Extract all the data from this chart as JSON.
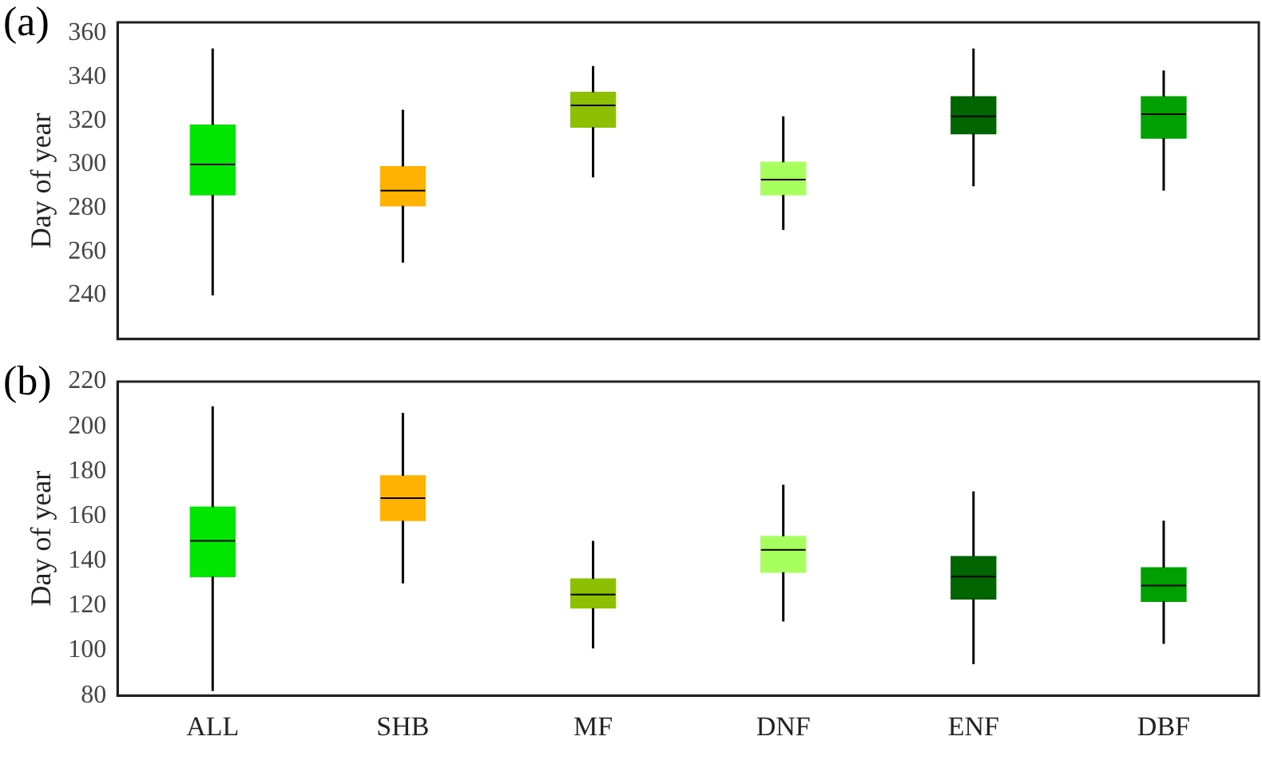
{
  "chart_data": [
    {
      "type": "box",
      "annotations": [
        "(a)"
      ],
      "ylabel": "Day of year",
      "categories": [
        null,
        null,
        null,
        null,
        null,
        null
      ],
      "colors": [
        "#00e600",
        "#ffb300",
        "#8cc000",
        "#a8ff60",
        "#006400",
        "#00a000"
      ],
      "boxes": [
        {
          "low": 240,
          "q1": 286,
          "median": 300,
          "q3": 318,
          "high": 353
        },
        {
          "low": 255,
          "q1": 281,
          "median": 288,
          "q3": 299,
          "high": 325
        },
        {
          "low": 294,
          "q1": 317,
          "median": 327,
          "q3": 333,
          "high": 345
        },
        {
          "low": 270,
          "q1": 286,
          "median": 293,
          "q3": 301,
          "high": 322
        },
        {
          "low": 290,
          "q1": 314,
          "median": 322,
          "q3": 331,
          "high": 353
        },
        {
          "low": 288,
          "q1": 312,
          "median": 323,
          "q3": 331,
          "high": 343
        }
      ],
      "ylim": [
        220,
        365
      ],
      "yticks": [
        240,
        260,
        280,
        300,
        320,
        340,
        360
      ],
      "tick_labels": "y",
      "grid": false
    },
    {
      "type": "box",
      "annotations": [
        "(b)"
      ],
      "ylabel": "Day of year",
      "categories": [
        "ALL",
        "SHB",
        "MF",
        "DNF",
        "ENF",
        "DBF"
      ],
      "colors": [
        "#00e600",
        "#ffb300",
        "#8cc000",
        "#a8ff60",
        "#006400",
        "#00a000"
      ],
      "boxes": [
        {
          "low": 82,
          "q1": 133,
          "median": 149,
          "q3": 164,
          "high": 209
        },
        {
          "low": 130,
          "q1": 158,
          "median": 168,
          "q3": 178,
          "high": 206
        },
        {
          "low": 101,
          "q1": 119,
          "median": 125,
          "q3": 132,
          "high": 149
        },
        {
          "low": 113,
          "q1": 135,
          "median": 145,
          "q3": 151,
          "high": 174
        },
        {
          "low": 94,
          "q1": 123,
          "median": 133,
          "q3": 142,
          "high": 171
        },
        {
          "low": 103,
          "q1": 122,
          "median": 129,
          "q3": 137,
          "high": 158
        }
      ],
      "ylim": [
        80,
        220
      ],
      "yticks": [
        80,
        100,
        120,
        140,
        160,
        180,
        200,
        220
      ],
      "grid": false
    }
  ]
}
